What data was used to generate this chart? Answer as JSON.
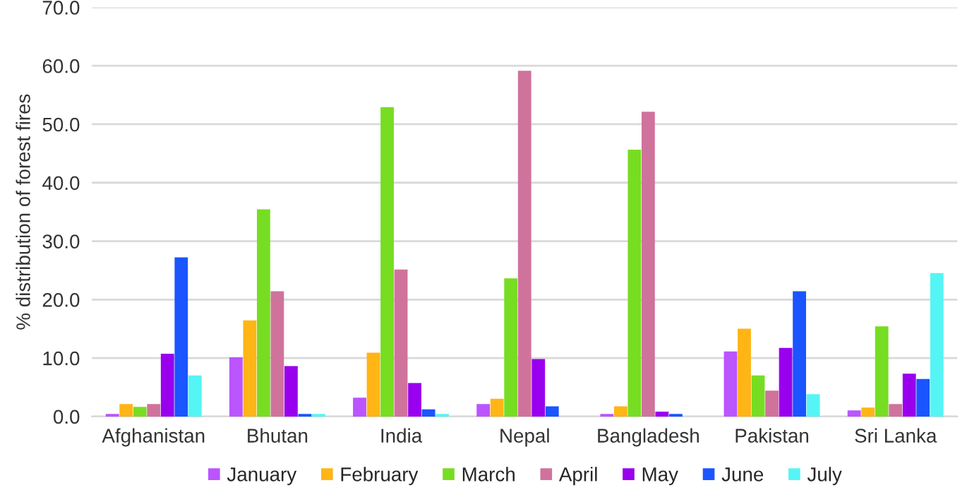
{
  "chart_data": {
    "type": "bar",
    "ylabel": "% distribution of forest fires",
    "categories": [
      "Afghanistan",
      "Bhutan",
      "India",
      "Nepal",
      "Bangladesh",
      "Pakistan",
      "Sri Lanka"
    ],
    "series": [
      {
        "name": "January",
        "color": "#bb55ff",
        "values": [
          0.3,
          10.0,
          3.1,
          2.0,
          0.3,
          11.0,
          0.9
        ]
      },
      {
        "name": "February",
        "color": "#ffb515",
        "values": [
          2.0,
          16.3,
          10.8,
          2.9,
          1.6,
          14.9,
          1.4
        ]
      },
      {
        "name": "March",
        "color": "#77dd22",
        "values": [
          1.5,
          35.3,
          52.8,
          23.5,
          45.5,
          6.9,
          15.3
        ]
      },
      {
        "name": "April",
        "color": "#d0739c",
        "values": [
          2.0,
          21.3,
          25.0,
          59.0,
          52.0,
          4.3,
          2.0
        ]
      },
      {
        "name": "May",
        "color": "#9900ee",
        "values": [
          10.6,
          8.5,
          5.6,
          9.7,
          0.7,
          11.6,
          7.2
        ]
      },
      {
        "name": "June",
        "color": "#1a55ff",
        "values": [
          27.1,
          0.3,
          1.1,
          1.6,
          0.3,
          21.3,
          6.3
        ]
      },
      {
        "name": "July",
        "color": "#55f5f5",
        "values": [
          6.9,
          0.3,
          0.3,
          null,
          null,
          3.7,
          24.4
        ]
      }
    ],
    "ylim": [
      0,
      70
    ],
    "yticks": [
      {
        "value": 0,
        "label": "0.0"
      },
      {
        "value": 10,
        "label": "10.0"
      },
      {
        "value": 20,
        "label": "20.0"
      },
      {
        "value": 30,
        "label": "30.0"
      },
      {
        "value": 40,
        "label": "40.0"
      },
      {
        "value": 50,
        "label": "50.0"
      },
      {
        "value": 60,
        "label": "60.0"
      },
      {
        "value": 70,
        "label": "70.0"
      }
    ],
    "grid": "y",
    "legend": "bottom"
  }
}
